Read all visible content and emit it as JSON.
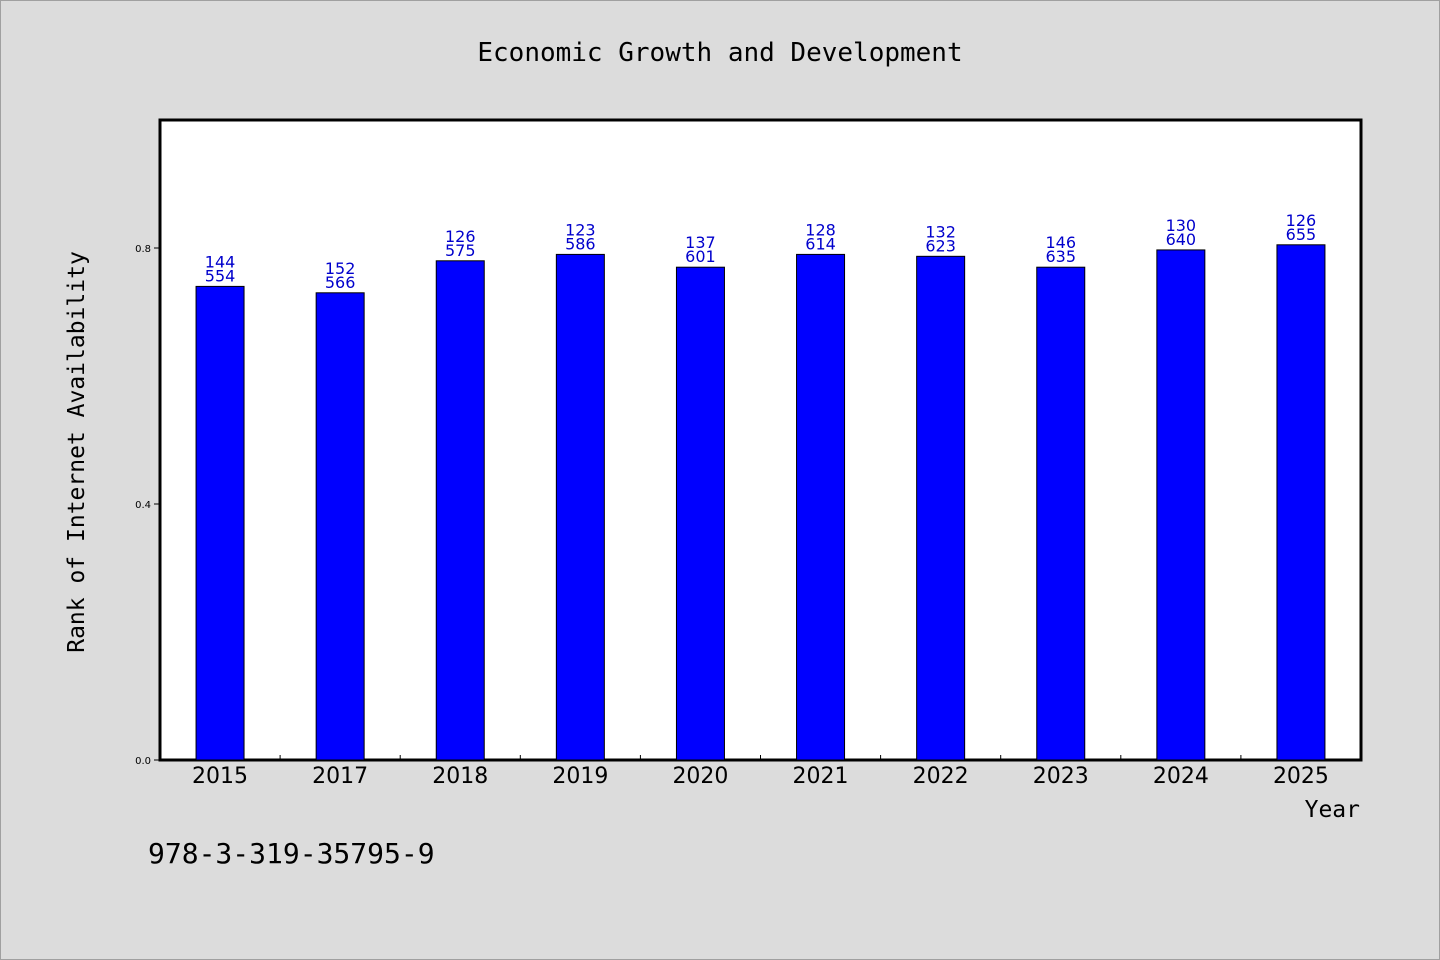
{
  "chart_data": {
    "type": "bar",
    "title": "Economic Growth and Development",
    "xlabel": "Year",
    "ylabel": "Rank of Internet Availability",
    "categories": [
      "2015",
      "2017",
      "2018",
      "2019",
      "2020",
      "2021",
      "2022",
      "2023",
      "2024",
      "2025"
    ],
    "values": [
      0.74,
      0.73,
      0.78,
      0.79,
      0.77,
      0.79,
      0.787,
      0.77,
      0.797,
      0.805
    ],
    "bar_labels_top": [
      "144",
      "152",
      "126",
      "123",
      "137",
      "128",
      "132",
      "146",
      "130",
      "126"
    ],
    "bar_labels_bottom": [
      "554",
      "566",
      "575",
      "586",
      "601",
      "614",
      "623",
      "635",
      "640",
      "655"
    ],
    "yticks": [
      0.0,
      0.4,
      0.8
    ],
    "ytick_labels": [
      "0.0",
      "0.4",
      "0.8"
    ],
    "ylim": [
      0,
      1.0
    ],
    "bar_color": "#0000ff",
    "label_color": "#0000cc",
    "grid": false,
    "legend": "none"
  },
  "footer": {
    "code": "978-3-319-35795-9"
  }
}
